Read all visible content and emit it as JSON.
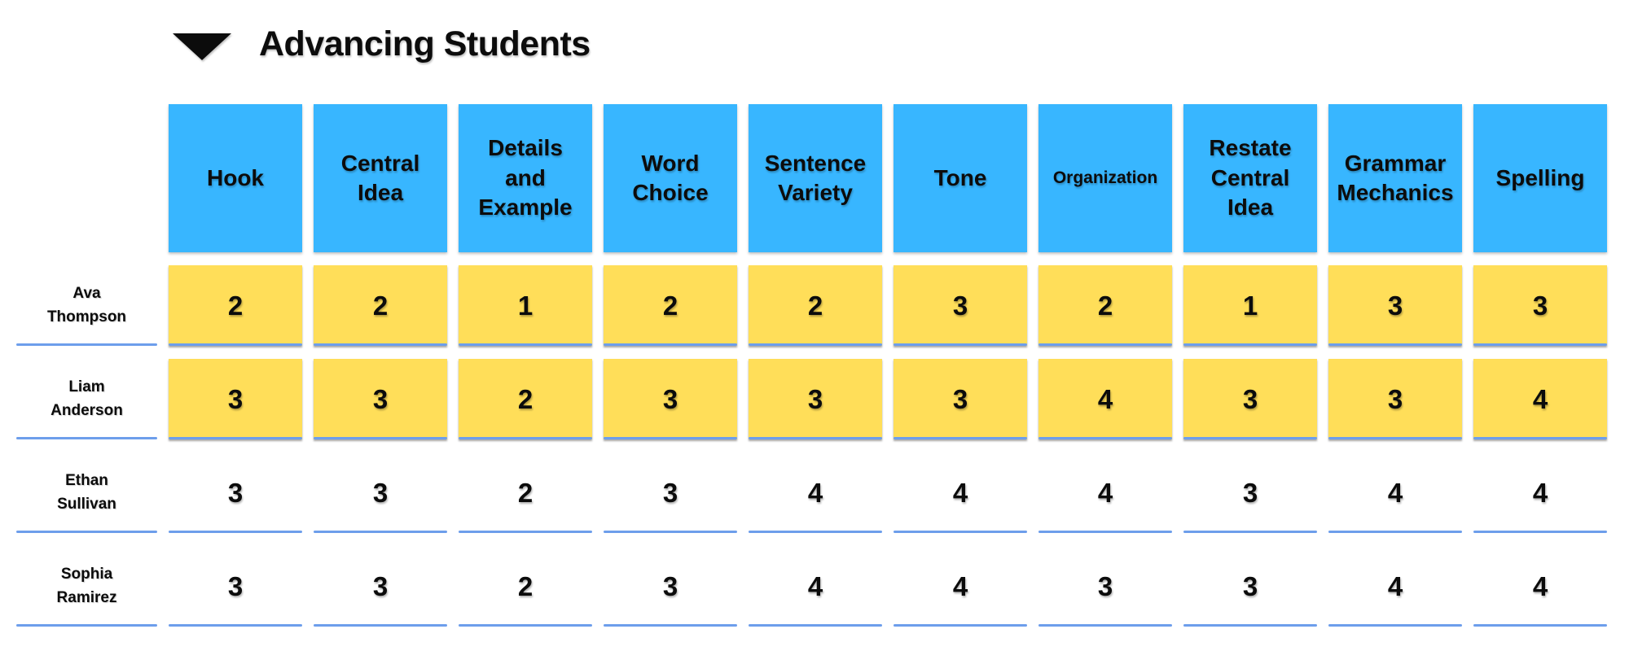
{
  "section": {
    "title": "Advancing Students",
    "collapse_icon": "triangle-down"
  },
  "table": {
    "columns": [
      {
        "label": "Hook"
      },
      {
        "label": "Central Idea"
      },
      {
        "label": "Details and Example"
      },
      {
        "label": "Word Choice"
      },
      {
        "label": "Sentence Variety"
      },
      {
        "label": "Tone"
      },
      {
        "label": "Organization"
      },
      {
        "label": "Restate Central Idea"
      },
      {
        "label": "Grammar Mechanics"
      },
      {
        "label": "Spelling"
      }
    ],
    "rows": [
      {
        "student": "Ava Thompson",
        "highlighted": true,
        "scores": [
          2,
          2,
          1,
          2,
          2,
          3,
          2,
          1,
          3,
          3
        ]
      },
      {
        "student": "Liam Anderson",
        "highlighted": true,
        "scores": [
          3,
          3,
          2,
          3,
          3,
          3,
          4,
          3,
          3,
          4
        ]
      },
      {
        "student": "Ethan Sullivan",
        "highlighted": false,
        "scores": [
          3,
          3,
          2,
          3,
          4,
          4,
          4,
          3,
          4,
          4
        ]
      },
      {
        "student": "Sophia Ramirez",
        "highlighted": false,
        "scores": [
          3,
          3,
          2,
          3,
          4,
          4,
          3,
          3,
          4,
          4
        ]
      }
    ]
  },
  "colors": {
    "header_cell": "#38B6FF",
    "highlight_cell": "#FFDE59",
    "underline": "#6d9eeb",
    "text": "#0c0c0c",
    "background": "#ffffff"
  }
}
